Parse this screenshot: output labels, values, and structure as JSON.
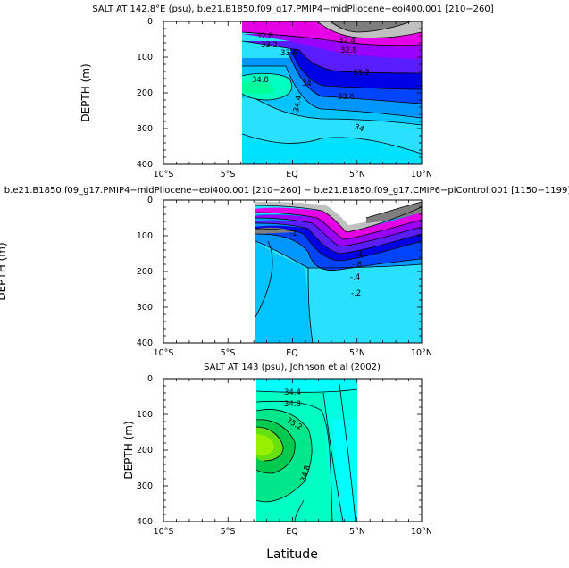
{
  "chart_data": [
    {
      "type": "contour",
      "title": "SALT AT 142.8°E (psu), b.e21.B1850.f09_g17.PMIP4−midPliocene−eoi400.001 [210−260]",
      "xlabel": "",
      "ylabel": "DEPTH (m)",
      "x_ticks": [
        "10°S",
        "5°S",
        "EQ",
        "5°N",
        "10°N"
      ],
      "y_ticks": [
        "0",
        "100",
        "200",
        "300",
        "400"
      ],
      "xlim": [
        -10,
        10
      ],
      "ylim": [
        400,
        0
      ],
      "data_extent_x": [
        -7,
        10
      ],
      "contour_labels": [
        "32.8",
        "32.4",
        "33.2",
        "32.8",
        "33.6",
        "33.2",
        "34.8",
        "34",
        "33.6",
        "34.4",
        "34"
      ],
      "colors": [
        "#7e7e7e",
        "#c0c0c0",
        "#e600e6",
        "#9a00ff",
        "#5a1dff",
        "#0000e6",
        "#0044ff",
        "#0096ff",
        "#00c3ff",
        "#29e1ff",
        "#00ffc3",
        "#00ff9a"
      ]
    },
    {
      "type": "contour",
      "title": "b.e21.B1850.f09_g17.PMIP4−midPliocene−eoi400.001 [210−260] − b.e21.B1850.f09_g17.CMIP6−piControl.001 [1150−1199]",
      "xlabel": "",
      "ylabel": "DEPTH (m)",
      "x_ticks": [
        "10°S",
        "5°S",
        "EQ",
        "5°N",
        "10°N"
      ],
      "y_ticks": [
        "0",
        "100",
        "200",
        "300",
        "400"
      ],
      "xlim": [
        -10,
        10
      ],
      "ylim": [
        400,
        0
      ],
      "data_extent_x": [
        -7,
        10
      ],
      "contour_labels": [
        "-1",
        "-1",
        "-.8",
        "-.4",
        "-.2"
      ],
      "colors": [
        "#7e7e7e",
        "#c0c0c0",
        "#e600e6",
        "#9a00ff",
        "#5a1dff",
        "#0000e6",
        "#0044ff",
        "#0096ff",
        "#00c3ff",
        "#29e1ff"
      ]
    },
    {
      "type": "contour",
      "title": "SALT AT 143 (psu), Johnson et al (2002)",
      "xlabel": "Latitude",
      "ylabel": "DEPTH (m)",
      "x_ticks": [
        "10°S",
        "5°S",
        "EQ",
        "5°N",
        "10°N"
      ],
      "y_ticks": [
        "0",
        "100",
        "200",
        "300",
        "400"
      ],
      "xlim": [
        -10,
        10
      ],
      "ylim": [
        400,
        0
      ],
      "data_extent_x": [
        -7,
        5
      ],
      "contour_labels": [
        "34.4",
        "34.8",
        "35.2",
        "34.8"
      ],
      "colors": [
        "#00ffff",
        "#00ffc3",
        "#00e68a",
        "#00c950",
        "#66e00e",
        "#98f000"
      ]
    }
  ]
}
